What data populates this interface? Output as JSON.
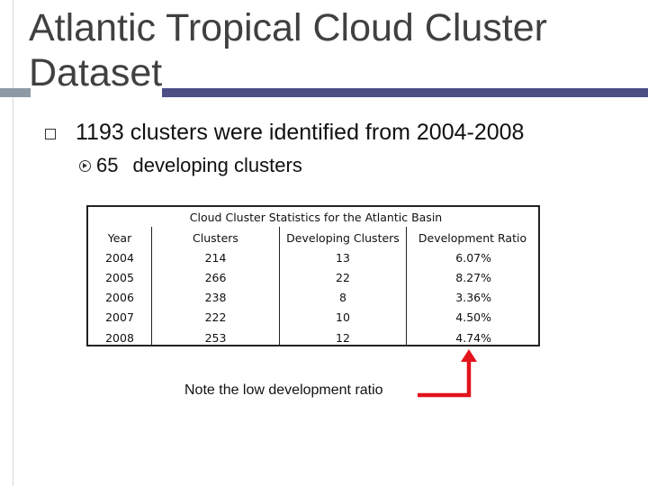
{
  "title": "Atlantic Tropical Cloud Cluster Dataset",
  "bullets": {
    "main": "1193 clusters were identified from 2004-2008",
    "sub_number": "65",
    "sub_text": "developing clusters"
  },
  "table": {
    "caption": "Cloud Cluster Statistics for the Atlantic Basin",
    "headers": [
      "Year",
      "Clusters",
      "Developing Clusters",
      "Development Ratio"
    ],
    "rows": [
      [
        "2004",
        "214",
        "13",
        "6.07%"
      ],
      [
        "2005",
        "266",
        "22",
        "8.27%"
      ],
      [
        "2006",
        "238",
        "8",
        "3.36%"
      ],
      [
        "2007",
        "222",
        "10",
        "4.50%"
      ],
      [
        "2008",
        "253",
        "12",
        "4.74%"
      ]
    ]
  },
  "note": "Note the low development ratio",
  "colors": {
    "title_text": "#404040",
    "title_bar": "#4b4f86",
    "title_bar_left": "#8c9aa6",
    "arrow": "#e3131b"
  },
  "icons": {
    "main_bullet": "square-bullet-icon",
    "sub_bullet": "circle-arrow-bullet-icon",
    "callout": "red-elbow-arrow-icon"
  }
}
